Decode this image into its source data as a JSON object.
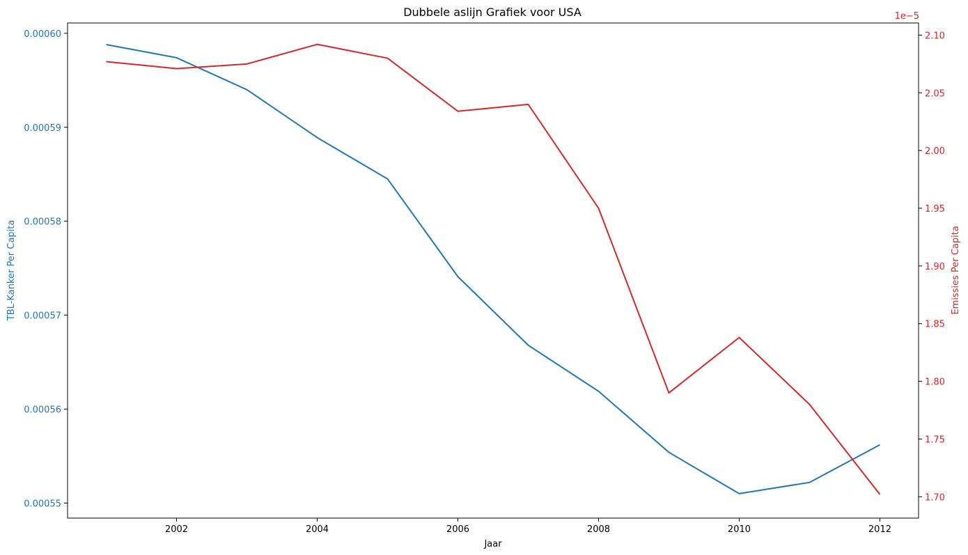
{
  "chart_data": {
    "type": "line",
    "title": "Dubbele aslijn Grafiek voor USA",
    "xlabel": "Jaar",
    "x": [
      2001,
      2002,
      2003,
      2004,
      2005,
      2006,
      2007,
      2008,
      2009,
      2010,
      2011,
      2012
    ],
    "xticks": [
      2002,
      2004,
      2006,
      2008,
      2010,
      2012
    ],
    "xlim": [
      2000.45,
      2012.55
    ],
    "grid": false,
    "legend": "none",
    "left_axis": {
      "label": "TBL-Kanker Per Capita",
      "color": "#1f77b4",
      "ylim": [
        0.0005484,
        0.0006011
      ],
      "ticks": [
        0.00055,
        0.00056,
        0.00057,
        0.00058,
        0.00059,
        0.0006
      ],
      "tick_labels": [
        "0.00055",
        "0.00056",
        "0.00057",
        "0.00058",
        "0.00059",
        "0.00060"
      ]
    },
    "right_axis": {
      "label": "Emissies Per Capita",
      "color": "#d62728",
      "ylim": [
        1.6815,
        2.1105
      ],
      "ticks": [
        1.7,
        1.75,
        1.8,
        1.85,
        1.9,
        1.95,
        2.0,
        2.05,
        2.1
      ],
      "tick_labels": [
        "1.70",
        "1.75",
        "1.80",
        "1.85",
        "1.90",
        "1.95",
        "2.00",
        "2.05",
        "2.10"
      ],
      "offset_text": "1e−5"
    },
    "series": [
      {
        "axis": "left",
        "color": "#1f77b4",
        "values": [
          0.0005988,
          0.0005974,
          0.000594,
          0.0005889,
          0.0005845,
          0.0005741,
          0.0005668,
          0.0005619,
          0.0005554,
          0.000551,
          0.0005522,
          0.0005562
        ]
      },
      {
        "axis": "right",
        "color": "#d62728",
        "values": [
          2.077,
          2.071,
          2.075,
          2.092,
          2.08,
          2.034,
          2.04,
          1.95,
          1.79,
          1.838,
          1.78,
          1.702
        ]
      }
    ]
  }
}
